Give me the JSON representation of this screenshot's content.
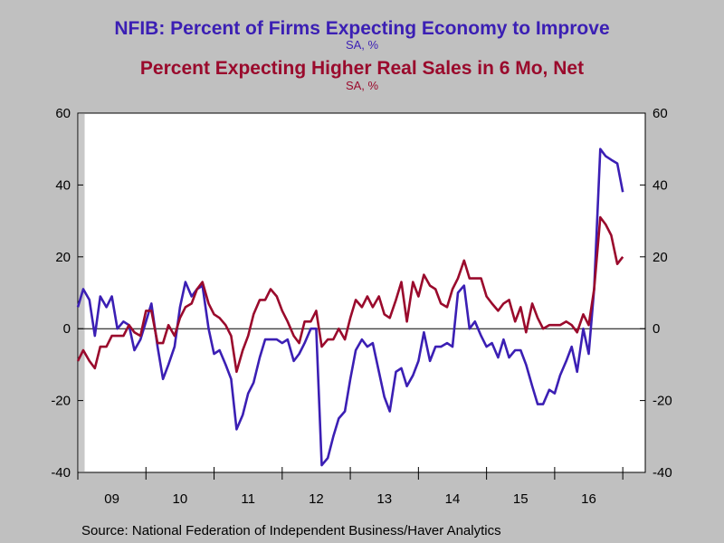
{
  "titles": {
    "line1": "NFIB: Percent of Firms Expecting Economy to Improve",
    "line1_unit": "SA, %",
    "line2": "Percent Expecting Higher Real Sales in 6 Mo, Net",
    "line2_unit": "SA, %"
  },
  "source": "Source:  National Federation of Independent Business/Haver Analytics",
  "colors": {
    "economy": "#3b1fb4",
    "sales": "#9a0a2c",
    "background": "#c0c0c0",
    "plot": "#ffffff"
  },
  "chart_data": {
    "type": "line",
    "ylim": [
      -40,
      60
    ],
    "y_ticks": [
      -40,
      -20,
      0,
      20,
      40,
      60
    ],
    "x_range": [
      2009.0,
      2017.33
    ],
    "x_tick_labels": [
      "09",
      "10",
      "11",
      "12",
      "13",
      "14",
      "15",
      "16"
    ],
    "shaded_until": 2009.1,
    "series": [
      {
        "key": "economy",
        "points": [
          [
            2009.0,
            6
          ],
          [
            2009.08,
            11
          ],
          [
            2009.17,
            8
          ],
          [
            2009.25,
            -2
          ],
          [
            2009.33,
            9
          ],
          [
            2009.42,
            6
          ],
          [
            2009.5,
            9
          ],
          [
            2009.58,
            0
          ],
          [
            2009.67,
            2
          ],
          [
            2009.75,
            1
          ],
          [
            2009.83,
            -6
          ],
          [
            2009.92,
            -3
          ],
          [
            2010.0,
            2
          ],
          [
            2010.08,
            7
          ],
          [
            2010.17,
            -5
          ],
          [
            2010.25,
            -14
          ],
          [
            2010.33,
            -10
          ],
          [
            2010.42,
            -5
          ],
          [
            2010.5,
            6
          ],
          [
            2010.58,
            13
          ],
          [
            2010.67,
            9
          ],
          [
            2010.75,
            11
          ],
          [
            2010.83,
            12
          ],
          [
            2010.92,
            0
          ],
          [
            2011.0,
            -7
          ],
          [
            2011.08,
            -6
          ],
          [
            2011.17,
            -10
          ],
          [
            2011.25,
            -14
          ],
          [
            2011.33,
            -28
          ],
          [
            2011.42,
            -24
          ],
          [
            2011.5,
            -18
          ],
          [
            2011.58,
            -15
          ],
          [
            2011.67,
            -8
          ],
          [
            2011.75,
            -3
          ],
          [
            2011.83,
            -3
          ],
          [
            2011.92,
            -3
          ],
          [
            2012.0,
            -4
          ],
          [
            2012.08,
            -3
          ],
          [
            2012.17,
            -9
          ],
          [
            2012.25,
            -7
          ],
          [
            2012.33,
            -4
          ],
          [
            2012.42,
            0
          ],
          [
            2012.5,
            0
          ],
          [
            2012.58,
            -38
          ],
          [
            2012.67,
            -36
          ],
          [
            2012.75,
            -30
          ],
          [
            2012.83,
            -25
          ],
          [
            2012.92,
            -23
          ],
          [
            2013.0,
            -14
          ],
          [
            2013.08,
            -6
          ],
          [
            2013.17,
            -3
          ],
          [
            2013.25,
            -5
          ],
          [
            2013.33,
            -4
          ],
          [
            2013.42,
            -12
          ],
          [
            2013.5,
            -19
          ],
          [
            2013.58,
            -23
          ],
          [
            2013.67,
            -12
          ],
          [
            2013.75,
            -11
          ],
          [
            2013.83,
            -16
          ],
          [
            2013.92,
            -13
          ],
          [
            2014.0,
            -9
          ],
          [
            2014.08,
            -1
          ],
          [
            2014.17,
            -9
          ],
          [
            2014.25,
            -5
          ],
          [
            2014.33,
            -5
          ],
          [
            2014.42,
            -4
          ],
          [
            2014.5,
            -5
          ],
          [
            2014.58,
            10
          ],
          [
            2014.67,
            12
          ],
          [
            2014.75,
            0
          ],
          [
            2014.83,
            2
          ],
          [
            2014.92,
            -2
          ],
          [
            2015.0,
            -5
          ],
          [
            2015.08,
            -4
          ],
          [
            2015.17,
            -8
          ],
          [
            2015.25,
            -3
          ],
          [
            2015.33,
            -8
          ],
          [
            2015.42,
            -6
          ],
          [
            2015.5,
            -6
          ],
          [
            2015.58,
            -10
          ],
          [
            2015.67,
            -16
          ],
          [
            2015.75,
            -21
          ],
          [
            2015.83,
            -21
          ],
          [
            2015.92,
            -17
          ],
          [
            2016.0,
            -18
          ],
          [
            2016.08,
            -13
          ],
          [
            2016.17,
            -9
          ],
          [
            2016.25,
            -5
          ],
          [
            2016.33,
            -12
          ],
          [
            2016.42,
            0
          ],
          [
            2016.5,
            -7
          ],
          [
            2016.58,
            11
          ],
          [
            2016.67,
            50
          ],
          [
            2016.75,
            48
          ],
          [
            2016.83,
            47
          ],
          [
            2016.92,
            46
          ],
          [
            2017.0,
            38
          ]
        ]
      },
      {
        "key": "sales",
        "points": [
          [
            2009.0,
            -9
          ],
          [
            2009.08,
            -6
          ],
          [
            2009.17,
            -9
          ],
          [
            2009.25,
            -11
          ],
          [
            2009.33,
            -5
          ],
          [
            2009.42,
            -5
          ],
          [
            2009.5,
            -2
          ],
          [
            2009.58,
            -2
          ],
          [
            2009.67,
            -2
          ],
          [
            2009.75,
            1
          ],
          [
            2009.83,
            -1
          ],
          [
            2009.92,
            -2
          ],
          [
            2010.0,
            5
          ],
          [
            2010.08,
            5
          ],
          [
            2010.17,
            -4
          ],
          [
            2010.25,
            -4
          ],
          [
            2010.33,
            1
          ],
          [
            2010.42,
            -2
          ],
          [
            2010.5,
            3
          ],
          [
            2010.58,
            6
          ],
          [
            2010.67,
            7
          ],
          [
            2010.75,
            11
          ],
          [
            2010.83,
            13
          ],
          [
            2010.92,
            7
          ],
          [
            2011.0,
            4
          ],
          [
            2011.08,
            3
          ],
          [
            2011.17,
            1
          ],
          [
            2011.25,
            -2
          ],
          [
            2011.33,
            -12
          ],
          [
            2011.42,
            -6
          ],
          [
            2011.5,
            -2
          ],
          [
            2011.58,
            4
          ],
          [
            2011.67,
            8
          ],
          [
            2011.75,
            8
          ],
          [
            2011.83,
            11
          ],
          [
            2011.92,
            9
          ],
          [
            2012.0,
            5
          ],
          [
            2012.08,
            2
          ],
          [
            2012.17,
            -2
          ],
          [
            2012.25,
            -4
          ],
          [
            2012.33,
            2
          ],
          [
            2012.42,
            2
          ],
          [
            2012.5,
            5
          ],
          [
            2012.58,
            -5
          ],
          [
            2012.67,
            -3
          ],
          [
            2012.75,
            -3
          ],
          [
            2012.83,
            0
          ],
          [
            2012.92,
            -3
          ],
          [
            2013.0,
            3
          ],
          [
            2013.08,
            8
          ],
          [
            2013.17,
            6
          ],
          [
            2013.25,
            9
          ],
          [
            2013.33,
            6
          ],
          [
            2013.42,
            9
          ],
          [
            2013.5,
            4
          ],
          [
            2013.58,
            3
          ],
          [
            2013.67,
            8
          ],
          [
            2013.75,
            13
          ],
          [
            2013.83,
            2
          ],
          [
            2013.92,
            13
          ],
          [
            2014.0,
            9
          ],
          [
            2014.08,
            15
          ],
          [
            2014.17,
            12
          ],
          [
            2014.25,
            11
          ],
          [
            2014.33,
            7
          ],
          [
            2014.42,
            6
          ],
          [
            2014.5,
            11
          ],
          [
            2014.58,
            14
          ],
          [
            2014.67,
            19
          ],
          [
            2014.75,
            14
          ],
          [
            2014.83,
            14
          ],
          [
            2014.92,
            14
          ],
          [
            2015.0,
            9
          ],
          [
            2015.08,
            7
          ],
          [
            2015.17,
            5
          ],
          [
            2015.25,
            7
          ],
          [
            2015.33,
            8
          ],
          [
            2015.42,
            2
          ],
          [
            2015.5,
            6
          ],
          [
            2015.58,
            -1
          ],
          [
            2015.67,
            7
          ],
          [
            2015.75,
            3
          ],
          [
            2015.83,
            0
          ],
          [
            2015.92,
            1
          ],
          [
            2016.0,
            1
          ],
          [
            2016.08,
            1
          ],
          [
            2016.17,
            2
          ],
          [
            2016.25,
            1
          ],
          [
            2016.33,
            -1
          ],
          [
            2016.42,
            4
          ],
          [
            2016.5,
            1
          ],
          [
            2016.58,
            11
          ],
          [
            2016.67,
            31
          ],
          [
            2016.75,
            29
          ],
          [
            2016.83,
            26
          ],
          [
            2016.92,
            18
          ],
          [
            2017.0,
            20
          ]
        ]
      }
    ]
  }
}
